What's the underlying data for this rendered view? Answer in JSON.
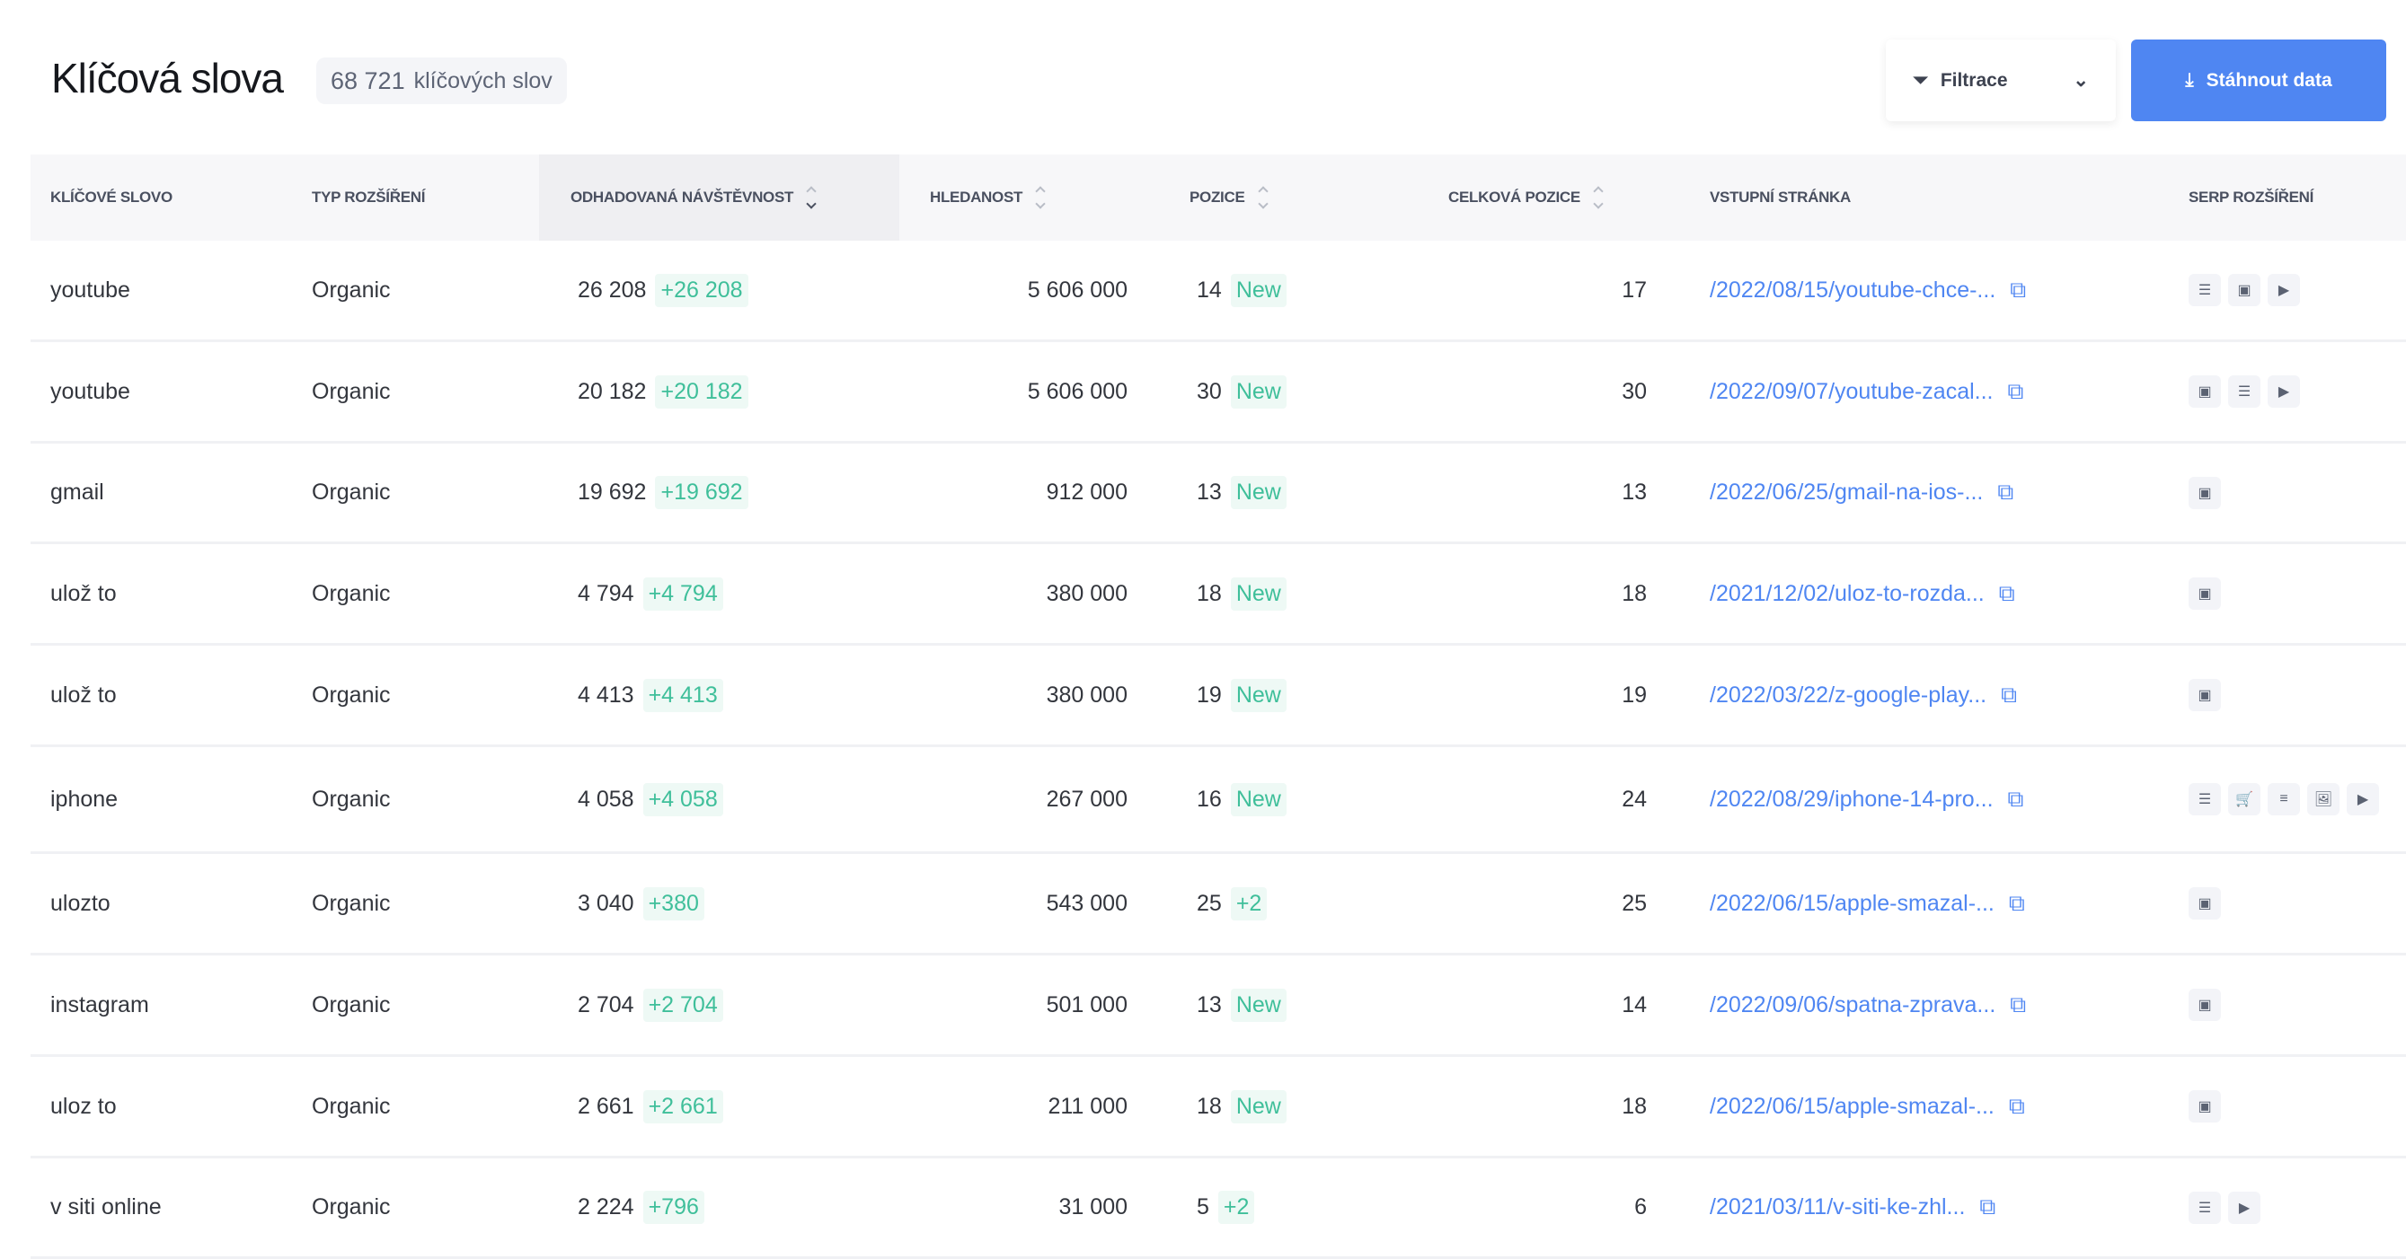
{
  "header": {
    "title": "Klíčová slova",
    "count_value": "68 721",
    "count_label": "klíčových slov",
    "filter_label": "Filtrace",
    "download_label": "Stáhnout data"
  },
  "columns": [
    "Klíčové slovo",
    "Typ rozšíření",
    "Odhadovaná návštěvnost",
    "Hledanost",
    "Pozice",
    "Celková pozice",
    "Vstupní stránka",
    "SERP rozšíření"
  ],
  "rows": [
    {
      "keyword": "youtube",
      "type": "Organic",
      "traffic": "26 208",
      "traffic_change": "+26 208",
      "volume": "5 606 000",
      "position": "14",
      "position_change": "New",
      "total_position": "17",
      "url": "/2022/08/15/youtube-chce-...",
      "serp": [
        "list",
        "doc",
        "video"
      ]
    },
    {
      "keyword": "youtube",
      "type": "Organic",
      "traffic": "20 182",
      "traffic_change": "+20 182",
      "volume": "5 606 000",
      "position": "30",
      "position_change": "New",
      "total_position": "30",
      "url": "/2022/09/07/youtube-zacal...",
      "serp": [
        "doc",
        "list",
        "video"
      ]
    },
    {
      "keyword": "gmail",
      "type": "Organic",
      "traffic": "19 692",
      "traffic_change": "+19 692",
      "volume": "912 000",
      "position": "13",
      "position_change": "New",
      "total_position": "13",
      "url": "/2022/06/25/gmail-na-ios-...",
      "serp": [
        "doc"
      ]
    },
    {
      "keyword": "ulož to",
      "type": "Organic",
      "traffic": "4 794",
      "traffic_change": "+4 794",
      "volume": "380 000",
      "position": "18",
      "position_change": "New",
      "total_position": "18",
      "url": "/2021/12/02/uloz-to-rozda...",
      "serp": [
        "doc"
      ]
    },
    {
      "keyword": "ulož to",
      "type": "Organic",
      "traffic": "4 413",
      "traffic_change": "+4 413",
      "volume": "380 000",
      "position": "19",
      "position_change": "New",
      "total_position": "19",
      "url": "/2022/03/22/z-google-play...",
      "serp": [
        "doc"
      ]
    },
    {
      "keyword": "iphone",
      "type": "Organic",
      "traffic": "4 058",
      "traffic_change": "+4 058",
      "volume": "267 000",
      "position": "16",
      "position_change": "New",
      "total_position": "24",
      "url": "/2022/08/29/iphone-14-pro...",
      "serp": [
        "list",
        "cart",
        "list-small",
        "image",
        "video"
      ]
    },
    {
      "keyword": "ulozto",
      "type": "Organic",
      "traffic": "3 040",
      "traffic_change": "+380",
      "volume": "543 000",
      "position": "25",
      "position_change": "+2",
      "total_position": "25",
      "url": "/2022/06/15/apple-smazal-...",
      "serp": [
        "doc"
      ]
    },
    {
      "keyword": "instagram",
      "type": "Organic",
      "traffic": "2 704",
      "traffic_change": "+2 704",
      "volume": "501 000",
      "position": "13",
      "position_change": "New",
      "total_position": "14",
      "url": "/2022/09/06/spatna-zprava...",
      "serp": [
        "doc"
      ]
    },
    {
      "keyword": "uloz to",
      "type": "Organic",
      "traffic": "2 661",
      "traffic_change": "+2 661",
      "volume": "211 000",
      "position": "18",
      "position_change": "New",
      "total_position": "18",
      "url": "/2022/06/15/apple-smazal-...",
      "serp": [
        "doc"
      ]
    },
    {
      "keyword": "v siti online",
      "type": "Organic",
      "traffic": "2 224",
      "traffic_change": "+796",
      "volume": "31 000",
      "position": "5",
      "position_change": "+2",
      "total_position": "6",
      "url": "/2021/03/11/v-siti-ke-zhl...",
      "serp": [
        "list",
        "video"
      ]
    }
  ],
  "colors": {
    "accent": "#4f86f2",
    "positive": "#3fbf9a"
  }
}
